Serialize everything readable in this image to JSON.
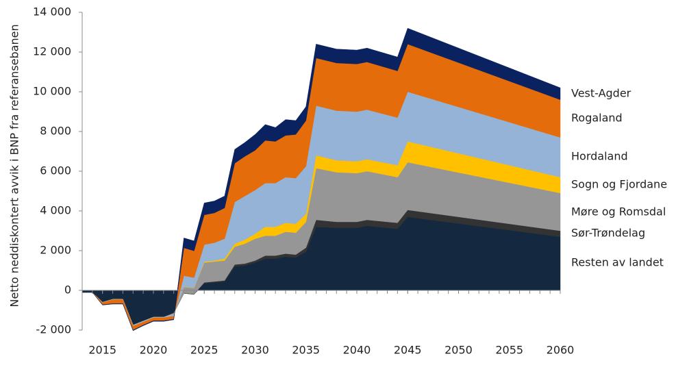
{
  "chart_data": {
    "type": "stacked-area",
    "y_label": "Netto neddiskontert avvik i BNP fra referansebanen",
    "x": [
      2013,
      2014,
      2015,
      2016,
      2017,
      2018,
      2019,
      2020,
      2021,
      2022,
      2023,
      2024,
      2025,
      2026,
      2027,
      2028,
      2029,
      2030,
      2031,
      2032,
      2033,
      2034,
      2035,
      2036,
      2038,
      2040,
      2041,
      2044,
      2045,
      2060
    ],
    "xlim": [
      2013,
      2060
    ],
    "xticks": [
      2015,
      2020,
      2025,
      2030,
      2035,
      2040,
      2045,
      2050,
      2055,
      2060
    ],
    "ylim": [
      -2000,
      14000
    ],
    "yticks": [
      {
        "value": -2000,
        "label": "-2 000"
      },
      0,
      {
        "value": 2000,
        "label": "2 000"
      },
      {
        "value": 4000,
        "label": "4 000"
      },
      {
        "value": 6000,
        "label": "6 000"
      },
      {
        "value": 8000,
        "label": "8 000"
      },
      {
        "value": 10000,
        "label": "10 000"
      },
      {
        "value": 12000,
        "label": "12 000"
      },
      {
        "value": 14000,
        "label": "14 000"
      }
    ],
    "series": [
      {
        "name": "Resten av landet",
        "color": "#14293f",
        "values": [
          -100,
          -100,
          -600,
          -450,
          -450,
          -1750,
          -1550,
          -1350,
          -1350,
          -1150,
          -150,
          -200,
          350,
          400,
          450,
          1200,
          1250,
          1400,
          1600,
          1600,
          1700,
          1650,
          1950,
          3200,
          3150,
          3150,
          3250,
          3100,
          3700,
          2700
        ]
      },
      {
        "name": "Sør-Trøndelag",
        "color": "#333333",
        "values": [
          0,
          0,
          0,
          0,
          0,
          0,
          0,
          0,
          0,
          0,
          20,
          20,
          50,
          50,
          50,
          100,
          100,
          100,
          150,
          150,
          150,
          150,
          200,
          350,
          300,
          300,
          300,
          300,
          350,
          300
        ]
      },
      {
        "name": "Møre og Romsdal",
        "color": "#969696",
        "values": [
          0,
          0,
          0,
          0,
          0,
          0,
          0,
          0,
          0,
          -50,
          300,
          300,
          1000,
          1000,
          1000,
          900,
          1000,
          1100,
          1000,
          1000,
          1100,
          1100,
          1300,
          2600,
          2500,
          2450,
          2450,
          2300,
          2400,
          1900
        ]
      },
      {
        "name": "Sogn og Fjordane",
        "color": "#ffc000",
        "values": [
          0,
          0,
          0,
          0,
          0,
          0,
          0,
          0,
          0,
          0,
          20,
          20,
          50,
          50,
          100,
          150,
          200,
          250,
          450,
          450,
          450,
          450,
          400,
          650,
          600,
          600,
          600,
          600,
          1050,
          800
        ]
      },
      {
        "name": "Hordaland",
        "color": "#95b3d7",
        "values": [
          0,
          0,
          -20,
          -20,
          -20,
          -50,
          -50,
          -30,
          -30,
          -100,
          550,
          500,
          850,
          900,
          1000,
          2100,
          2200,
          2200,
          2200,
          2200,
          2300,
          2300,
          2400,
          2500,
          2500,
          2500,
          2500,
          2400,
          2500,
          2000
        ]
      },
      {
        "name": "Rogaland",
        "color": "#e46c0a",
        "values": [
          0,
          0,
          -100,
          -200,
          -200,
          -200,
          -150,
          -150,
          -150,
          -150,
          1400,
          1350,
          1500,
          1500,
          1550,
          1950,
          2000,
          2000,
          2150,
          2100,
          2100,
          2200,
          2300,
          2400,
          2400,
          2400,
          2400,
          2350,
          2400,
          1900
        ]
      },
      {
        "name": "Vest-Agder",
        "color": "#0b2260",
        "values": [
          0,
          0,
          -20,
          -20,
          -20,
          -30,
          -30,
          -30,
          -30,
          -30,
          500,
          500,
          600,
          600,
          600,
          700,
          700,
          800,
          800,
          700,
          800,
          700,
          700,
          700,
          700,
          700,
          700,
          700,
          800,
          600
        ]
      }
    ]
  }
}
